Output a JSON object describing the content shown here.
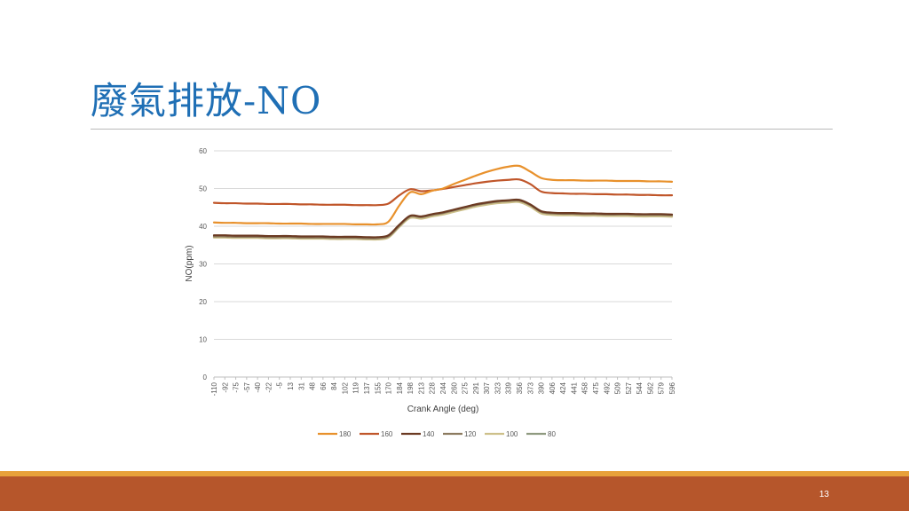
{
  "slide": {
    "title": "廢氣排放-NO",
    "page_number": "13"
  },
  "colors": {
    "title": "#1f6fb5",
    "band_thin": "#e8a13a",
    "band": "#b6562b"
  },
  "chart_data": {
    "type": "line",
    "title": "",
    "xlabel": "Crank Angle (deg)",
    "ylabel": "NO(ppm)",
    "ylim": [
      0,
      60
    ],
    "yticks": [
      0,
      10,
      20,
      30,
      40,
      50,
      60
    ],
    "grid": true,
    "legend_position": "bottom",
    "categories": [
      "-110",
      "-92",
      "-75",
      "-57",
      "-40",
      "-22",
      "-5",
      "13",
      "31",
      "48",
      "66",
      "84",
      "102",
      "119",
      "137",
      "155",
      "170",
      "184",
      "198",
      "213",
      "228",
      "244",
      "260",
      "275",
      "291",
      "307",
      "323",
      "339",
      "356",
      "373",
      "390",
      "406",
      "424",
      "441",
      "458",
      "475",
      "492",
      "509",
      "527",
      "544",
      "562",
      "579",
      "596"
    ],
    "series": [
      {
        "name": "180",
        "color": "#e8912c",
        "values": [
          41.0,
          40.9,
          40.9,
          40.8,
          40.8,
          40.8,
          40.7,
          40.7,
          40.7,
          40.6,
          40.6,
          40.6,
          40.6,
          40.5,
          40.5,
          40.5,
          41.2,
          45.5,
          49.0,
          48.5,
          49.4,
          50.0,
          51.2,
          52.3,
          53.4,
          54.4,
          55.2,
          55.8,
          56.0,
          54.5,
          52.8,
          52.3,
          52.2,
          52.2,
          52.1,
          52.1,
          52.1,
          52.0,
          52.0,
          52.0,
          51.9,
          51.9,
          51.8
        ]
      },
      {
        "name": "160",
        "color": "#c0562a",
        "values": [
          46.2,
          46.1,
          46.1,
          46.0,
          46.0,
          45.9,
          45.9,
          45.9,
          45.8,
          45.8,
          45.7,
          45.7,
          45.7,
          45.6,
          45.6,
          45.6,
          46.0,
          48.2,
          49.8,
          49.3,
          49.5,
          49.9,
          50.4,
          50.9,
          51.4,
          51.8,
          52.1,
          52.3,
          52.4,
          51.2,
          49.2,
          48.8,
          48.7,
          48.6,
          48.6,
          48.5,
          48.5,
          48.4,
          48.4,
          48.3,
          48.3,
          48.2,
          48.2
        ]
      },
      {
        "name": "140",
        "color": "#6b3a22",
        "values": [
          37.6,
          37.6,
          37.5,
          37.5,
          37.5,
          37.4,
          37.4,
          37.4,
          37.3,
          37.3,
          37.3,
          37.2,
          37.2,
          37.2,
          37.1,
          37.1,
          37.6,
          40.4,
          42.8,
          42.6,
          43.2,
          43.7,
          44.4,
          45.1,
          45.8,
          46.3,
          46.7,
          46.9,
          47.0,
          45.8,
          44.0,
          43.6,
          43.5,
          43.5,
          43.4,
          43.4,
          43.3,
          43.3,
          43.3,
          43.2,
          43.2,
          43.2,
          43.1
        ]
      },
      {
        "name": "120",
        "color": "#8c7b60",
        "values": [
          37.3,
          37.3,
          37.2,
          37.2,
          37.2,
          37.1,
          37.1,
          37.1,
          37.0,
          37.0,
          37.0,
          36.9,
          36.9,
          36.9,
          36.8,
          36.8,
          37.3,
          40.1,
          42.6,
          42.4,
          43.0,
          43.5,
          44.2,
          44.9,
          45.6,
          46.1,
          46.5,
          46.7,
          46.8,
          45.6,
          43.8,
          43.4,
          43.3,
          43.3,
          43.2,
          43.2,
          43.1,
          43.1,
          43.1,
          43.0,
          43.0,
          43.0,
          42.9
        ]
      },
      {
        "name": "100",
        "color": "#cdc08a",
        "values": [
          37.0,
          37.0,
          36.9,
          36.9,
          36.9,
          36.8,
          36.8,
          36.8,
          36.7,
          36.7,
          36.7,
          36.6,
          36.6,
          36.6,
          36.5,
          36.5,
          37.0,
          39.8,
          42.2,
          42.0,
          42.6,
          43.1,
          43.8,
          44.5,
          45.2,
          45.7,
          46.1,
          46.3,
          46.4,
          45.2,
          43.4,
          43.0,
          42.9,
          42.9,
          42.8,
          42.8,
          42.7,
          42.7,
          42.7,
          42.6,
          42.6,
          42.6,
          42.5
        ]
      },
      {
        "name": "80",
        "color": "#8f9a80",
        "values": [
          37.1,
          37.1,
          37.0,
          37.0,
          37.0,
          36.9,
          36.9,
          36.9,
          36.8,
          36.8,
          36.8,
          36.7,
          36.7,
          36.7,
          36.6,
          36.6,
          37.1,
          39.9,
          42.3,
          42.1,
          42.7,
          43.2,
          43.9,
          44.6,
          45.3,
          45.8,
          46.2,
          46.4,
          46.5,
          45.3,
          43.5,
          43.1,
          43.0,
          43.0,
          42.9,
          42.9,
          42.8,
          42.8,
          42.8,
          42.7,
          42.7,
          42.7,
          42.6
        ]
      }
    ]
  }
}
